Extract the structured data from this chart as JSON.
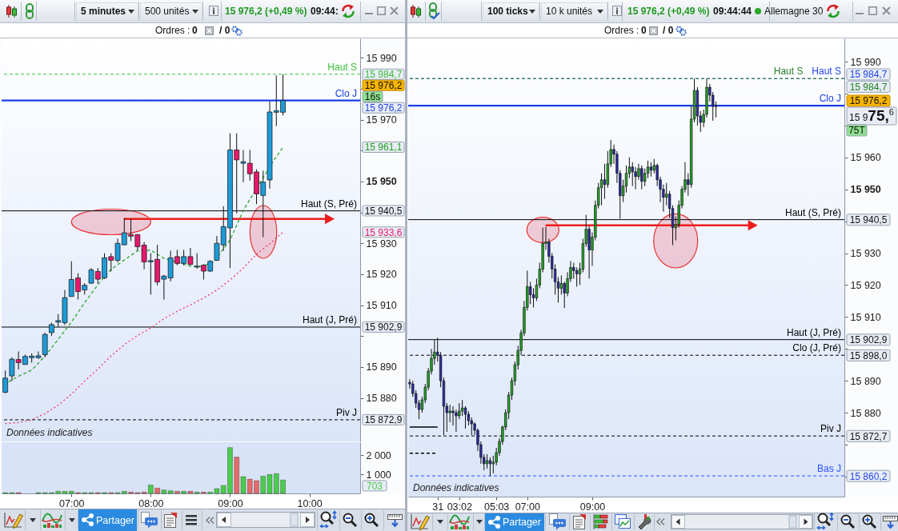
{
  "chart_data": [
    {
      "type": "other",
      "annotations": [
        "5 minutes",
        "500 unités",
        "15 976,2 (+0,49 %)",
        "09:44:",
        "Ordres :",
        "0",
        "/ 0"
      ]
    },
    {
      "type": "candlestick",
      "x": [
        6.1667,
        6.25,
        6.3333,
        6.4167,
        6.5,
        6.5833,
        6.6667,
        6.75,
        6.8333,
        6.9167,
        7,
        7.0833,
        7.1667,
        7.25,
        7.3333,
        7.4167,
        7.5,
        7.5833,
        7.6667,
        7.75,
        7.8333,
        7.9167,
        8,
        8.0833,
        8.1667,
        8.25,
        8.3333,
        8.4167,
        8.5,
        8.5833,
        8.6667,
        8.75,
        8.8333,
        8.9167,
        9,
        9.0833,
        9.1667,
        9.25,
        9.3333,
        9.4167,
        9.5,
        9.5833,
        9.6667
      ],
      "ohlc": [
        [
          15881.8,
          15888.8,
          15881.5,
          15886.4
        ],
        [
          15887.1,
          15893.1,
          15885.4,
          15892.5
        ],
        [
          15892.4,
          15895.0,
          15889.2,
          15891.4
        ],
        [
          15890.8,
          15894.0,
          15890.8,
          15893.4
        ],
        [
          15893.0,
          15894.4,
          15891.4,
          15893.5
        ],
        [
          15893.0,
          15895.0,
          15892.6,
          15893.6
        ],
        [
          15894.0,
          15901.1,
          15893.1,
          15900.5
        ],
        [
          15901.1,
          15904.3,
          15900.0,
          15903.7
        ],
        [
          15904.5,
          15907.1,
          15903.0,
          15905.0
        ],
        [
          15904.3,
          15914.9,
          15903.6,
          15912.4
        ],
        [
          15912.8,
          15924.2,
          15912.8,
          15918.3
        ],
        [
          15918.8,
          15920.3,
          15911.8,
          15914.4
        ],
        [
          15914.9,
          15917.1,
          15913.4,
          15916.4
        ],
        [
          15917.1,
          15922.0,
          15916.9,
          15921.4
        ],
        [
          15920.9,
          15922.0,
          15917.0,
          15918.4
        ],
        [
          15918.8,
          15926.8,
          15918.5,
          15925.3
        ],
        [
          15925.7,
          15926.8,
          15920.9,
          15924.5
        ],
        [
          15924.5,
          15931.5,
          15923.8,
          15930.0
        ],
        [
          15929.5,
          15938.2,
          15929.5,
          15933.4
        ],
        [
          15932.8,
          15938.0,
          15930.7,
          15932.3
        ],
        [
          15932.8,
          15933.0,
          15927.6,
          15928.9
        ],
        [
          15929.4,
          15930.4,
          15921.6,
          15924.0
        ],
        [
          15924.0,
          15926.8,
          15913.4,
          15924.4
        ],
        [
          15924.8,
          15929.5,
          15916.4,
          15917.5
        ],
        [
          15918.4,
          15919.8,
          15911.8,
          15919.4
        ],
        [
          15918.8,
          15927.6,
          15917.7,
          15925.3
        ],
        [
          15925.7,
          15927.9,
          15922.9,
          15923.5
        ],
        [
          15923.5,
          15927.9,
          15922.9,
          15925.7
        ],
        [
          15925.7,
          15928.5,
          15922.9,
          15923.2
        ],
        [
          15922.3,
          15926.8,
          15921.8,
          15922.6
        ],
        [
          15922.9,
          15923.3,
          15918.3,
          15921.0
        ],
        [
          15921.0,
          15924.5,
          15920.8,
          15924.2
        ],
        [
          15924.5,
          15932.4,
          15924.3,
          15930.0
        ],
        [
          15929.5,
          15942.0,
          15927.6,
          15935.4
        ],
        [
          15935.0,
          15965.6,
          15922.0,
          15960.2
        ],
        [
          15960.2,
          15965.6,
          15939.7,
          15957.0
        ],
        [
          15955.9,
          15960.2,
          15949.8,
          15956.4
        ],
        [
          15955.9,
          15960.2,
          15950.3,
          15952.5
        ],
        [
          15953.1,
          15953.9,
          15942.7,
          15946.0
        ],
        [
          15945.5,
          15953.5,
          15932.0,
          15949.8
        ],
        [
          15950.5,
          15975.9,
          15947.7,
          15972.5
        ],
        [
          15972.4,
          15984.3,
          15967.9,
          15972.9
        ],
        [
          15972.4,
          15984.7,
          15971.4,
          15976.2
        ]
      ],
      "colors": [
        "#1e9bd7",
        "#1e9bd7",
        "#e8186c",
        "#1e9bd7",
        "#1e9bd7",
        "#1e9bd7",
        "#1e9bd7",
        "#1e9bd7",
        "#1e9bd7",
        "#1e9bd7",
        "#1e9bd7",
        "#e8186c",
        "#1e9bd7",
        "#1e9bd7",
        "#e8186c",
        "#1e9bd7",
        "#e8186c",
        "#1e9bd7",
        "#1e9bd7",
        "#e8186c",
        "#e8186c",
        "#e8186c",
        "#1e9bd7",
        "#e8186c",
        "#1e9bd7",
        "#1e9bd7",
        "#e8186c",
        "#1e9bd7",
        "#e8186c",
        "#1e9bd7",
        "#e8186c",
        "#1e9bd7",
        "#1e9bd7",
        "#1e9bd7",
        "#1e9bd7",
        "#e8186c",
        "#1e9bd7",
        "#e8186c",
        "#e8186c",
        "#1e9bd7",
        "#1e9bd7",
        "#1e9bd7",
        "#1e9bd7"
      ],
      "xlim": [
        6.12,
        10.64
      ],
      "ylim": [
        15865.9,
        15996.3
      ],
      "yticks": [
        {
          "value": 15880,
          "label": "15 880"
        },
        {
          "value": 15890,
          "label": "15 890"
        },
        {
          "value": 15900,
          "label": null
        },
        {
          "value": 15910,
          "label": "15 910"
        },
        {
          "value": 15920,
          "label": "15 920"
        },
        {
          "value": 15930,
          "label": "15 930"
        },
        {
          "value": 15940,
          "label": null
        },
        {
          "value": 15950,
          "label": "15 950"
        },
        {
          "value": 15960,
          "label": null
        },
        {
          "value": 15970,
          "label": "15 970"
        },
        {
          "value": 15980,
          "label": null
        },
        {
          "value": 15990,
          "label": "15 990"
        }
      ],
      "tick_labels": "y",
      "series": [
        {
          "type": "line",
          "x": [
            6.2083,
            6.3333,
            6.5,
            6.6667,
            6.8333,
            7,
            7.1667,
            7.3333,
            7.5,
            7.6667,
            7.8333,
            8,
            8.1667,
            8.2917,
            8.5,
            8.625,
            8.7917,
            9,
            9.1667,
            9.2917,
            9.5417,
            9.6667
          ],
          "values": [
            15885.2,
            15887.0,
            15889.0,
            15893.5,
            15898.9,
            15904.5,
            15910.8,
            15916.6,
            15921.6,
            15924.6,
            15927.6,
            15927.8,
            15925.1,
            15924.2,
            15922.6,
            15922.5,
            15923.8,
            15931.1,
            15940.6,
            15946.0,
            15956.5,
            15961.1
          ],
          "color": "#2ea82e",
          "line_style": "dashed"
        },
        {
          "type": "line",
          "x": [
            6.1667,
            6.3333,
            6.5,
            6.6667,
            6.8333,
            7,
            7.1667,
            7.3333,
            7.5,
            7.6667,
            7.8333,
            8,
            8.1667,
            8.3333,
            8.5,
            8.6667,
            8.8333,
            9,
            9.1667,
            9.3333,
            9.5,
            9.6667
          ],
          "values": [
            15871.7,
            15872.0,
            15872.9,
            15874.9,
            15877.6,
            15881.2,
            15885.4,
            15889.3,
            15893.6,
            15897.2,
            15900.2,
            15902.6,
            15905.6,
            15908.0,
            15910.1,
            15912.3,
            15914.9,
            15918.1,
            15922.0,
            15926.5,
            15929.8,
            15933.6
          ],
          "color": "#f0386e",
          "line_style": "dotted"
        }
      ],
      "ref_lines": [
        {
          "axis": "y",
          "value": 15984.7,
          "label": "Haut S",
          "color": "#3cc03c",
          "line_style": "dashed"
        },
        {
          "axis": "y",
          "value": 15976.2,
          "label": "Clo J",
          "color": "#1a3ee8",
          "line_style": "solid"
        },
        {
          "axis": "y",
          "value": 15940.5,
          "label": "Haut (S, Pré)",
          "color": "#000000",
          "line_style": "solid"
        },
        {
          "axis": "y",
          "value": 15902.9,
          "label": "Haut (J, Pré)",
          "color": "#000000",
          "line_style": "solid"
        },
        {
          "axis": "y",
          "value": 15872.9,
          "label": "Piv J",
          "color": "#000000",
          "line_style": "dashed"
        }
      ],
      "annotations": [
        "Données indicatives",
        "15 984,7",
        "15 976,2",
        "16s",
        "15 976,2",
        "15 961,1",
        "15 940,5",
        "15 933,6",
        "15 902,9",
        "15 872,9"
      ]
    },
    {
      "type": "bar",
      "x": [
        6.1667,
        6.25,
        6.3333,
        6.5833,
        6.6667,
        6.75,
        6.8333,
        6.9167,
        7,
        7.0833,
        7.1667,
        7.25,
        7.3333,
        7.4167,
        7.5,
        7.5833,
        7.6667,
        7.75,
        7.8333,
        7.9167,
        8,
        8.0833,
        8.1667,
        8.25,
        8.3333,
        8.4167,
        8.5,
        8.5833,
        8.6667,
        8.75,
        8.8333,
        8.9167,
        9,
        9.0833,
        9.1667,
        9.25,
        9.3333,
        9.4167,
        9.5,
        9.5833,
        9.6667
      ],
      "values": [
        40,
        40,
        40,
        40,
        40,
        40,
        110,
        110,
        110,
        40,
        40,
        40,
        40,
        40,
        40,
        40,
        110,
        70,
        40,
        70,
        440,
        280,
        180,
        140,
        110,
        110,
        110,
        70,
        70,
        70,
        250,
        420,
        2400,
        1900,
        880,
        750,
        670,
        900,
        990,
        1040,
        703
      ],
      "colors": [
        "#4ccc4c",
        "#4ccc4c",
        "#e56b6b",
        "#4ccc4c",
        "#4ccc4c",
        "#4ccc4c",
        "#4ccc4c",
        "#4ccc4c",
        "#4ccc4c",
        "#e56b6b",
        "#4ccc4c",
        "#4ccc4c",
        "#e56b6b",
        "#4ccc4c",
        "#e56b6b",
        "#4ccc4c",
        "#4ccc4c",
        "#e56b6b",
        "#e56b6b",
        "#e56b6b",
        "#4ccc4c",
        "#e56b6b",
        "#4ccc4c",
        "#4ccc4c",
        "#e56b6b",
        "#4ccc4c",
        "#e56b6b",
        "#4ccc4c",
        "#e56b6b",
        "#4ccc4c",
        "#4ccc4c",
        "#4ccc4c",
        "#4ccc4c",
        "#e56b6b",
        "#4ccc4c",
        "#e56b6b",
        "#e56b6b",
        "#4ccc4c",
        "#4ccc4c",
        "#4ccc4c",
        "#4ccc4c"
      ],
      "xlim": [
        6.12,
        10.64
      ],
      "xticks": [
        {
          "value": 7,
          "label": "07:00"
        },
        {
          "value": 8,
          "label": "08:00"
        },
        {
          "value": 9,
          "label": "09:00"
        },
        {
          "value": 10,
          "label": "10:00"
        }
      ],
      "ylim": [
        0,
        2680
      ],
      "yticks": [
        {
          "value": 1000,
          "label": "1 000"
        },
        {
          "value": 2000,
          "label": "2 000"
        }
      ],
      "annotations": [
        "703"
      ]
    },
    {
      "type": "other",
      "annotations": [
        "Partager"
      ]
    },
    {
      "type": "other",
      "annotations": [
        "100 ticks",
        "10 k unités",
        "15 976,2 (+0,49 %)",
        "09:44:44",
        "Allemagne 30",
        "Ordres :",
        "0",
        "/ 0"
      ]
    },
    {
      "type": "candlestick",
      "categories": [
        null,
        null,
        null,
        null,
        null,
        null,
        null,
        null,
        null,
        "31",
        null,
        null,
        null,
        null,
        null,
        null,
        "03:02",
        null,
        null,
        null,
        null,
        null,
        null,
        null,
        null,
        null,
        null,
        null,
        "05:03",
        null,
        null,
        null,
        null,
        null,
        null,
        null,
        null,
        null,
        "07:00",
        null,
        null,
        null,
        null,
        null,
        null,
        null,
        null,
        null,
        null,
        null,
        null,
        null,
        null,
        null,
        null,
        null,
        null,
        null,
        null,
        "09:00",
        null,
        null,
        null,
        null,
        null,
        null,
        null,
        null,
        null,
        null,
        null,
        null,
        null,
        null,
        null,
        null,
        null,
        null,
        null,
        null,
        null,
        null,
        null,
        null,
        null,
        null,
        null,
        null,
        null,
        null,
        null,
        null,
        null,
        null,
        null,
        null,
        null,
        null,
        null,
        null,
        null,
        null,
        null,
        null,
        null,
        null,
        null,
        null,
        null,
        null,
        null,
        null,
        null,
        null,
        null,
        null,
        null,
        null,
        null,
        null,
        null,
        null,
        null,
        null,
        null,
        null,
        null,
        null,
        null,
        null,
        null,
        null,
        null,
        null,
        null,
        null,
        null,
        null,
        null,
        null,
        null
      ],
      "ohlc": [
        [
          15889.5,
          15890.5,
          15887.5,
          15889
        ],
        [
          15889,
          15890,
          15885,
          15886
        ],
        [
          15886,
          15887,
          15881.5,
          15883
        ],
        [
          15883,
          15884,
          15878,
          15881
        ],
        [
          15881,
          15885,
          15880,
          15884
        ],
        [
          15884,
          15889,
          15883,
          15888
        ],
        [
          15888,
          15894,
          15887,
          15893
        ],
        [
          15893,
          15900,
          15892,
          15897
        ],
        [
          15897,
          15903,
          15895,
          15899
        ],
        [
          15899,
          15903.5,
          15896,
          15898
        ],
        [
          15898,
          15899,
          15888,
          15890
        ],
        [
          15890,
          15891,
          15873,
          15882
        ],
        [
          15882,
          15883,
          15874,
          15880
        ],
        [
          15880,
          15882.5,
          15877,
          15880.5
        ],
        [
          15880.5,
          15882,
          15876,
          15880
        ],
        [
          15880,
          15881,
          15874,
          15879
        ],
        [
          15879,
          15883,
          15878,
          15880.5
        ],
        [
          15880.5,
          15884,
          15879,
          15881.5
        ],
        [
          15881.5,
          15882,
          15875,
          15879.5
        ],
        [
          15879.5,
          15880.5,
          15876,
          15877.5
        ],
        [
          15877.5,
          15878.5,
          15873,
          15876.5
        ],
        [
          15876.5,
          15877,
          15873,
          15874.5
        ],
        [
          15874.5,
          15875,
          15868,
          15870
        ],
        [
          15870,
          15871,
          15864,
          15866
        ],
        [
          15866,
          15867,
          15862,
          15864
        ],
        [
          15864,
          15867,
          15862.5,
          15865
        ],
        [
          15865,
          15866,
          15860.2,
          15864
        ],
        [
          15864,
          15866.5,
          15861,
          15864.5
        ],
        [
          15864.5,
          15869,
          15863.5,
          15867.5
        ],
        [
          15867.5,
          15872,
          15866.5,
          15871
        ],
        [
          15871,
          15876,
          15870,
          15875.5
        ],
        [
          15875.5,
          15881,
          15874.5,
          15880
        ],
        [
          15880,
          15886.5,
          15878,
          15885.5
        ],
        [
          15885.5,
          15891,
          15884,
          15890
        ],
        [
          15890,
          15896,
          15888.5,
          15895
        ],
        [
          15895,
          15901,
          15893.5,
          15899.5
        ],
        [
          15899.5,
          15906,
          15898,
          15905
        ],
        [
          15905,
          15915,
          15904,
          15913
        ],
        [
          15913,
          15924.5,
          15912,
          15919.5
        ],
        [
          15919.5,
          15921,
          15914,
          15917
        ],
        [
          15917,
          15919,
          15913,
          15916
        ],
        [
          15916,
          15922,
          15915,
          15920
        ],
        [
          15920,
          15927,
          15919,
          15925
        ],
        [
          15925,
          15938,
          15924,
          15933
        ],
        [
          15933,
          15938.2,
          15931,
          15933.5
        ],
        [
          15933.5,
          15934.5,
          15927,
          15929
        ],
        [
          15929,
          15930,
          15922,
          15925
        ],
        [
          15925,
          15926.5,
          15917,
          15921
        ],
        [
          15921,
          15922.5,
          15914.5,
          15919
        ],
        [
          15919,
          15923,
          15917,
          15920.5
        ],
        [
          15920.5,
          15921,
          15912.8,
          15917.5
        ],
        [
          15917.5,
          15924,
          15916.5,
          15922
        ],
        [
          15922,
          15927.5,
          15921,
          15925.5
        ],
        [
          15925.5,
          15927,
          15922,
          15924.5
        ],
        [
          15924.5,
          15925.5,
          15919.5,
          15923.5
        ],
        [
          15923.5,
          15927,
          15920,
          15925
        ],
        [
          15925,
          15934.5,
          15924,
          15933
        ],
        [
          15933,
          15942,
          15932,
          15937.5
        ],
        [
          15937.5,
          15938.5,
          15922,
          15931
        ],
        [
          15931,
          15936.5,
          15926,
          15935
        ],
        [
          15935,
          15946.5,
          15934,
          15945
        ],
        [
          15945,
          15952,
          15944,
          15950.5
        ],
        [
          15950.5,
          15955,
          15945,
          15953
        ],
        [
          15953,
          15958,
          15947,
          15951.5
        ],
        [
          15951.5,
          15962,
          15950.5,
          15958
        ],
        [
          15958,
          15965.5,
          15957,
          15962.5
        ],
        [
          15962.5,
          15964,
          15958,
          15961
        ],
        [
          15961,
          15962,
          15952,
          15955
        ],
        [
          15955,
          15956,
          15940.8,
          15948
        ],
        [
          15948,
          15953,
          15946,
          15951
        ],
        [
          15951,
          15957.5,
          15949,
          15955
        ],
        [
          15955,
          15960,
          15953.5,
          15957
        ],
        [
          15957,
          15958.5,
          15951,
          15955.5
        ],
        [
          15955.5,
          15957,
          15950,
          15954
        ],
        [
          15954,
          15958,
          15953,
          15956.5
        ],
        [
          15956.5,
          15957.5,
          15950,
          15952.5
        ],
        [
          15952.5,
          15956.5,
          15951,
          15955
        ],
        [
          15955,
          15959,
          15953.5,
          15957
        ],
        [
          15957,
          15958.5,
          15954,
          15956
        ],
        [
          15956,
          15959.5,
          15955,
          15957.5
        ],
        [
          15957.5,
          15958,
          15951,
          15953
        ],
        [
          15953,
          15954,
          15946,
          15950
        ],
        [
          15950,
          15951.5,
          15943,
          15947.5
        ],
        [
          15947.5,
          15952,
          15945,
          15948.5
        ],
        [
          15948.5,
          15949.5,
          15941,
          15944
        ],
        [
          15944,
          15945,
          15932.5,
          15938
        ],
        [
          15938,
          15941.5,
          15934,
          15939
        ],
        [
          15939,
          15946.5,
          15938,
          15945
        ],
        [
          15945,
          15951,
          15944,
          15950
        ],
        [
          15950,
          15958.5,
          15949,
          15953
        ],
        [
          15953,
          15955,
          15948,
          15951.5
        ],
        [
          15951.5,
          15976,
          15950.5,
          15972
        ],
        [
          15972,
          15984.7,
          15971,
          15981
        ],
        [
          15981,
          15982,
          15970,
          15973
        ],
        [
          15973,
          15974.5,
          15968,
          15971
        ],
        [
          15971,
          15975,
          15969.5,
          15973.5
        ],
        [
          15973.5,
          15984.7,
          15972.5,
          15982
        ],
        [
          15982,
          15983,
          15977.5,
          15979.5
        ],
        [
          15979.5,
          15980.5,
          15971.5,
          15976
        ],
        [
          15976,
          15977.5,
          15972.5,
          15976.2
        ],
        null,
        null,
        null,
        null,
        null,
        null,
        null,
        null,
        null,
        null,
        null,
        null,
        null,
        null,
        null,
        null,
        null,
        null,
        null,
        null,
        null,
        null,
        null,
        null,
        null,
        null,
        null,
        null,
        null,
        null,
        null,
        null,
        null,
        null,
        null,
        null,
        null,
        null,
        null,
        null,
        null
      ],
      "colors": [
        "#2b2ba6",
        "#2b2ba6",
        "#2b2ba6",
        "#2b2ba6",
        "#22aa22",
        "#22aa22",
        "#22aa22",
        "#22aa22",
        "#22aa22",
        "#2b2ba6",
        "#2b2ba6",
        "#2b2ba6",
        "#2b2ba6",
        "#22aa22",
        "#2b2ba6",
        "#2b2ba6",
        "#22aa22",
        "#22aa22",
        "#2b2ba6",
        "#2b2ba6",
        "#2b2ba6",
        "#2b2ba6",
        "#2b2ba6",
        "#2b2ba6",
        "#2b2ba6",
        "#22aa22",
        "#2b2ba6",
        "#22aa22",
        "#22aa22",
        "#22aa22",
        "#22aa22",
        "#22aa22",
        "#22aa22",
        "#22aa22",
        "#22aa22",
        "#22aa22",
        "#22aa22",
        "#22aa22",
        "#22aa22",
        "#2b2ba6",
        "#2b2ba6",
        "#22aa22",
        "#22aa22",
        "#22aa22",
        "#22aa22",
        "#2b2ba6",
        "#2b2ba6",
        "#2b2ba6",
        "#2b2ba6",
        "#22aa22",
        "#2b2ba6",
        "#22aa22",
        "#22aa22",
        "#2b2ba6",
        "#2b2ba6",
        "#22aa22",
        "#22aa22",
        "#22aa22",
        "#2b2ba6",
        "#22aa22",
        "#22aa22",
        "#22aa22",
        "#22aa22",
        "#2b2ba6",
        "#22aa22",
        "#22aa22",
        "#2b2ba6",
        "#2b2ba6",
        "#2b2ba6",
        "#22aa22",
        "#22aa22",
        "#22aa22",
        "#2b2ba6",
        "#2b2ba6",
        "#22aa22",
        "#2b2ba6",
        "#22aa22",
        "#22aa22",
        "#2b2ba6",
        "#22aa22",
        "#2b2ba6",
        "#2b2ba6",
        "#2b2ba6",
        "#22aa22",
        "#2b2ba6",
        "#2b2ba6",
        "#22aa22",
        "#22aa22",
        "#22aa22",
        "#22aa22",
        "#2b2ba6",
        "#22aa22",
        "#22aa22",
        "#2b2ba6",
        "#2b2ba6",
        "#22aa22",
        "#22aa22",
        "#2b2ba6",
        "#2b2ba6",
        "#22aa22",
        null,
        null,
        null,
        null,
        null,
        null,
        null,
        null,
        null,
        null,
        null,
        null,
        null,
        null,
        null,
        null,
        null,
        null,
        null,
        null,
        null,
        null,
        null,
        null,
        null,
        null,
        null,
        null,
        null,
        null,
        null,
        null,
        null,
        null,
        null,
        null,
        null,
        null,
        null,
        null,
        null
      ],
      "ylim": [
        15853.7,
        15997.3
      ],
      "yticks": [
        {
          "value": 15860,
          "label": null
        },
        {
          "value": 15870,
          "label": null
        },
        {
          "value": 15880,
          "label": "15 880"
        },
        {
          "value": 15890,
          "label": "15 890"
        },
        {
          "value": 15900,
          "label": null
        },
        {
          "value": 15910,
          "label": "15 910"
        },
        {
          "value": 15920,
          "label": "15 920"
        },
        {
          "value": 15930,
          "label": "15 930"
        },
        {
          "value": 15940,
          "label": null
        },
        {
          "value": 15950,
          "label": "15 950"
        },
        {
          "value": 15960,
          "label": "15 960"
        },
        {
          "value": 15970,
          "label": null
        },
        {
          "value": 15980,
          "label": null
        },
        {
          "value": 15990,
          "label": "15 990"
        }
      ],
      "series": [
        {
          "type": "line",
          "values": [
            15875.5,
            15875.5,
            15875.5,
            15875.5,
            15875.5,
            15875.5,
            15875.5,
            15875.5,
            15875.5,
            15875.5,
            null,
            null,
            null,
            null,
            null,
            null,
            null,
            null,
            null,
            null,
            null,
            null,
            null,
            null,
            null,
            null,
            null,
            null,
            null,
            null,
            null,
            null,
            null,
            null,
            null,
            null,
            null,
            null,
            null,
            null,
            null,
            null,
            null,
            null,
            null,
            null,
            null,
            null,
            null,
            null,
            null,
            null,
            null,
            null,
            null,
            null,
            null,
            null,
            null,
            null,
            null,
            null,
            null,
            null,
            null,
            null,
            null,
            null,
            null,
            null,
            null,
            null,
            null,
            null,
            null,
            null,
            null,
            null,
            null,
            null,
            null,
            null,
            null,
            null,
            null,
            null,
            null,
            null,
            null,
            null,
            null,
            null,
            null,
            null,
            null,
            null,
            null,
            null,
            null,
            null,
            null,
            null,
            null,
            null,
            null,
            null,
            null,
            null,
            null,
            null,
            null,
            null,
            null,
            null,
            null,
            null,
            null,
            null,
            null,
            null,
            null,
            null,
            null,
            null,
            null,
            null,
            null,
            null,
            null,
            null,
            null,
            null,
            null,
            null,
            null,
            null,
            null,
            null,
            null,
            null,
            null
          ],
          "color": "#000000",
          "line_style": "solid"
        },
        {
          "type": "line",
          "values": [
            15867.3,
            15867.3,
            15867.3,
            15867.3,
            15867.3,
            15867.3,
            15867.3,
            15867.3,
            15867.3,
            15867.3,
            null,
            null,
            null,
            null,
            null,
            null,
            null,
            null,
            null,
            null,
            null,
            null,
            null,
            null,
            null,
            null,
            null,
            null,
            null,
            null,
            null,
            null,
            null,
            null,
            null,
            null,
            null,
            null,
            null,
            null,
            null,
            null,
            null,
            null,
            null,
            null,
            null,
            null,
            null,
            null,
            null,
            null,
            null,
            null,
            null,
            null,
            null,
            null,
            null,
            null,
            null,
            null,
            null,
            null,
            null,
            null,
            null,
            null,
            null,
            null,
            null,
            null,
            null,
            null,
            null,
            null,
            null,
            null,
            null,
            null,
            null,
            null,
            null,
            null,
            null,
            null,
            null,
            null,
            null,
            null,
            null,
            null,
            null,
            null,
            null,
            null,
            null,
            null,
            null,
            null,
            null,
            null,
            null,
            null,
            null,
            null,
            null,
            null,
            null,
            null,
            null,
            null,
            null,
            null,
            null,
            null,
            null,
            null,
            null,
            null,
            null,
            null,
            null,
            null,
            null,
            null,
            null,
            null,
            null,
            null,
            null,
            null,
            null,
            null,
            null,
            null,
            null,
            null,
            null,
            null,
            null
          ],
          "color": "#000000",
          "line_style": "dashed"
        }
      ],
      "ref_lines": [
        {
          "axis": "y",
          "value": 15984.7,
          "label": "Haut S",
          "color": "#2244ee",
          "line_style": "dashed"
        },
        {
          "axis": "y",
          "value": 15984.7,
          "label": "Haut S",
          "color": "#2a7a2a",
          "line_style": "dashed"
        },
        {
          "axis": "y",
          "value": 15976.2,
          "label": "Clo J",
          "color": "#1a3ee8",
          "line_style": "solid"
        },
        {
          "axis": "y",
          "value": 15940.5,
          "label": "Haut (S, Pré)",
          "color": "#000000",
          "line_style": "solid"
        },
        {
          "axis": "y",
          "value": 15902.9,
          "label": "Haut (J, Pré)",
          "color": "#000000",
          "line_style": "solid"
        },
        {
          "axis": "y",
          "value": 15898.0,
          "label": "Clo (J, Pré)",
          "color": "#000000",
          "line_style": "dashed"
        },
        {
          "axis": "y",
          "value": 15872.7,
          "label": "Piv J",
          "color": "#000000",
          "line_style": "dashed"
        },
        {
          "axis": "y",
          "value": 15860.2,
          "label": "Bas J",
          "color": "#2a50ff",
          "line_style": "dashed"
        }
      ],
      "annotations": [
        "Données indicatives",
        "15 984,7",
        "15 984,7",
        "15 976,2",
        "15 975,6",
        "75T",
        "15 940,5",
        "15 902,9",
        "15 898,0",
        "15 872,7",
        "15 860,2"
      ]
    },
    {
      "type": "other",
      "annotations": [
        "Partager"
      ]
    }
  ]
}
